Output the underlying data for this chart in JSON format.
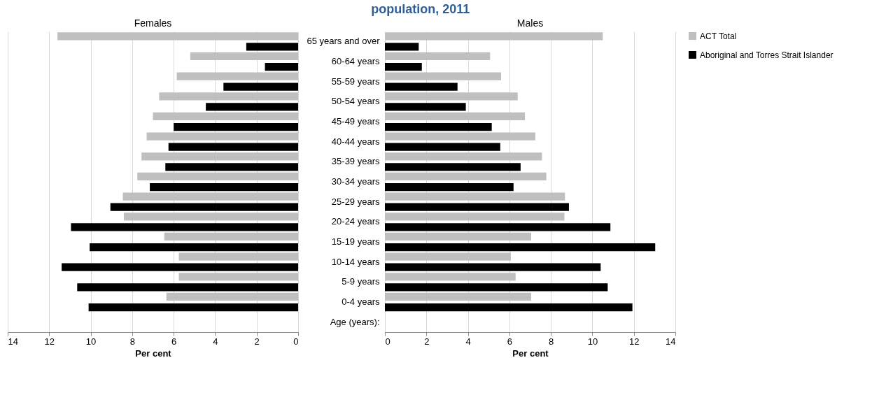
{
  "chart_data": [
    {
      "type": "bar",
      "orientation": "horizontal",
      "title": "Females",
      "xlabel": "Per cent",
      "annotations": [
        "population, 2011"
      ],
      "categories": [
        null,
        null,
        null,
        null,
        null,
        null,
        null,
        null,
        null,
        null,
        null,
        null,
        null,
        null,
        null
      ],
      "series": [
        {
          "color": "#bfbfbf",
          "values": [
            11.6,
            5.2,
            5.85,
            6.7,
            7.0,
            7.3,
            7.55,
            7.75,
            8.45,
            8.4,
            6.45,
            5.75,
            5.75,
            6.35,
            null
          ]
        },
        {
          "color": "#000000",
          "values": [
            2.5,
            1.6,
            3.6,
            4.45,
            6.0,
            6.25,
            6.4,
            7.15,
            9.05,
            10.95,
            10.05,
            11.4,
            10.65,
            10.1,
            null
          ]
        }
      ],
      "xlim": [
        14,
        0
      ],
      "xticks": [
        14,
        12,
        10,
        8,
        6,
        4,
        2,
        0
      ],
      "grid": "x",
      "legend": false,
      "tick_labels": "x"
    },
    {
      "type": "bar",
      "orientation": "horizontal",
      "title": "Males",
      "xlabel": "Per cent",
      "categories": [
        "65 years and over",
        "60-64 years",
        "55-59 years",
        "50-54 years",
        "45-49 years",
        "40-44 years",
        "35-39 years",
        "30-34 years",
        "25-29 years",
        "20-24 years",
        "15-19 years",
        "10-14 years",
        "5-9 years",
        "0-4 years",
        null
      ],
      "ylabel": "Age (years):",
      "series": [
        {
          "name": "ACT Total",
          "color": "#bfbfbf",
          "values": [
            10.5,
            5.07,
            5.6,
            6.4,
            6.75,
            7.25,
            7.57,
            7.78,
            8.68,
            8.65,
            7.05,
            6.07,
            6.3,
            7.05,
            null
          ]
        },
        {
          "name": "Aboriginal and Torres Strait Islander",
          "color": "#000000",
          "values": [
            1.63,
            1.78,
            3.5,
            3.9,
            5.15,
            5.56,
            6.54,
            6.2,
            8.87,
            10.87,
            13.03,
            10.4,
            10.74,
            11.93,
            null
          ]
        }
      ],
      "xlim": [
        0,
        14
      ],
      "xticks": [
        0,
        2,
        4,
        6,
        8,
        10,
        12,
        14
      ],
      "grid": "x",
      "legend": "right"
    }
  ]
}
